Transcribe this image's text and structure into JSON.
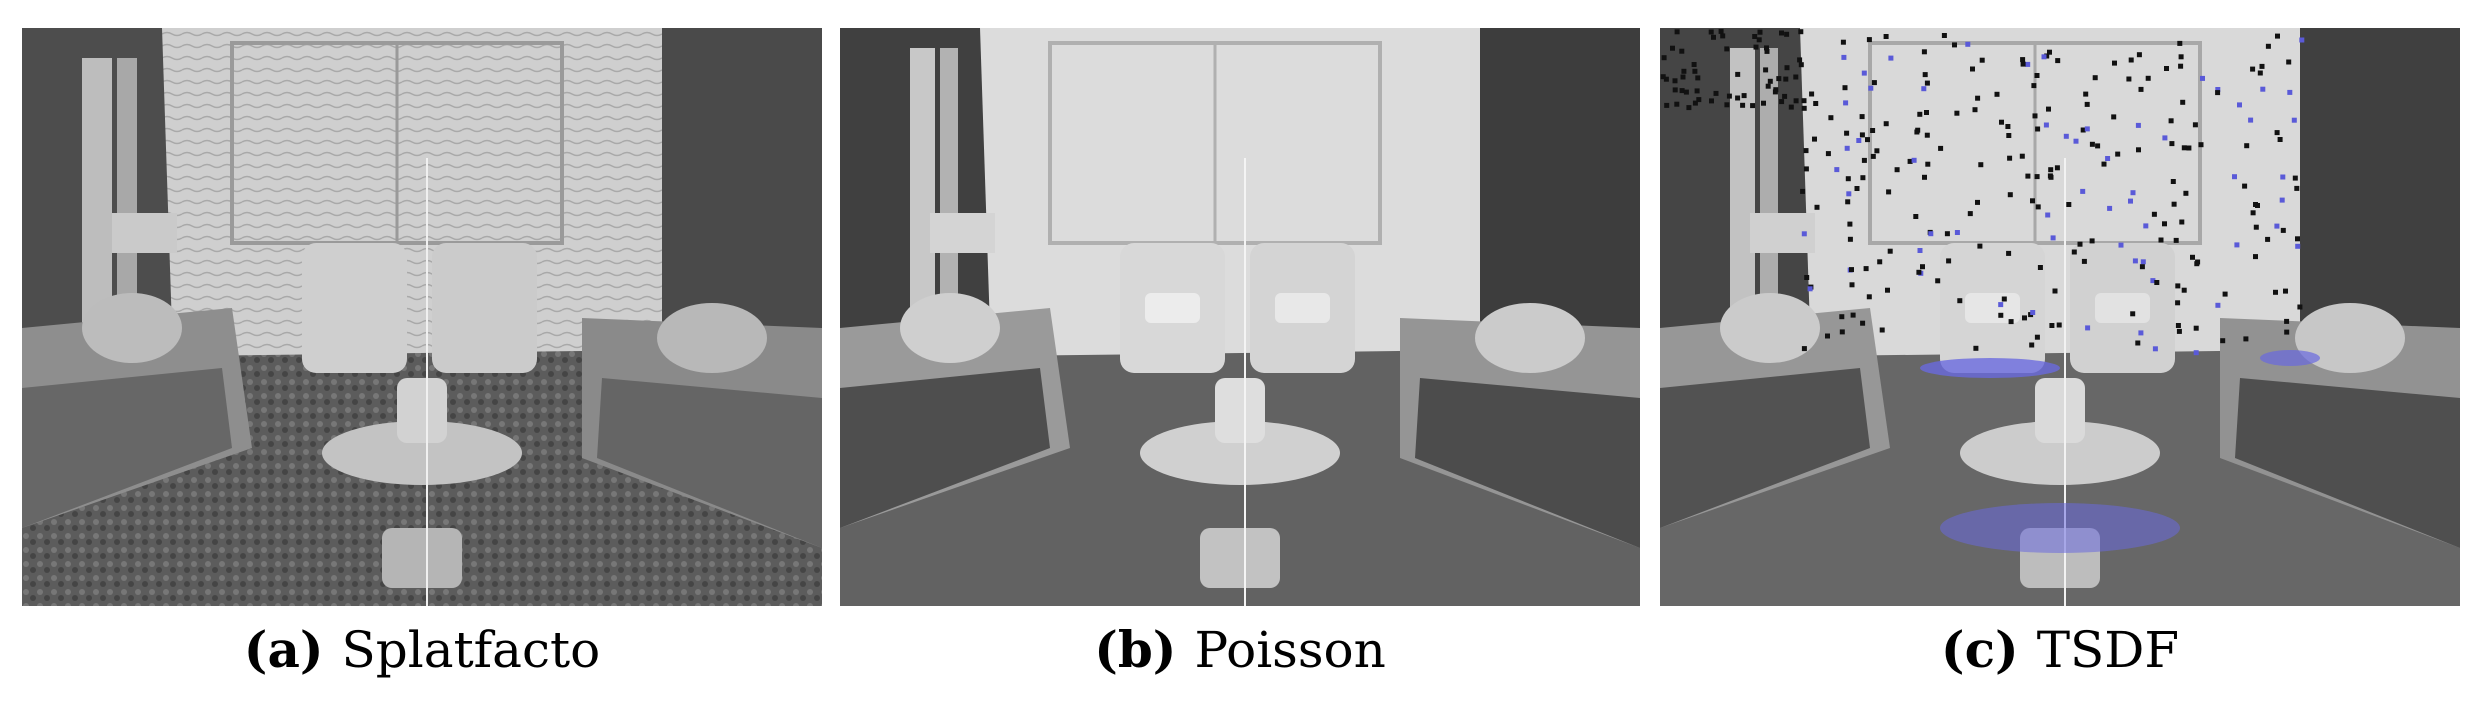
{
  "panels": [
    {
      "label": "(a)",
      "name": "Splatfacto"
    },
    {
      "label": "(b)",
      "name": "Poisson"
    },
    {
      "label": "(c)",
      "name": "TSDF"
    }
  ],
  "colors": {
    "mesh_light": "#d6d6d6",
    "mesh_dark": "#4a4a4a",
    "noise_black": "#111111",
    "noise_blue": "#5a5ad8"
  }
}
